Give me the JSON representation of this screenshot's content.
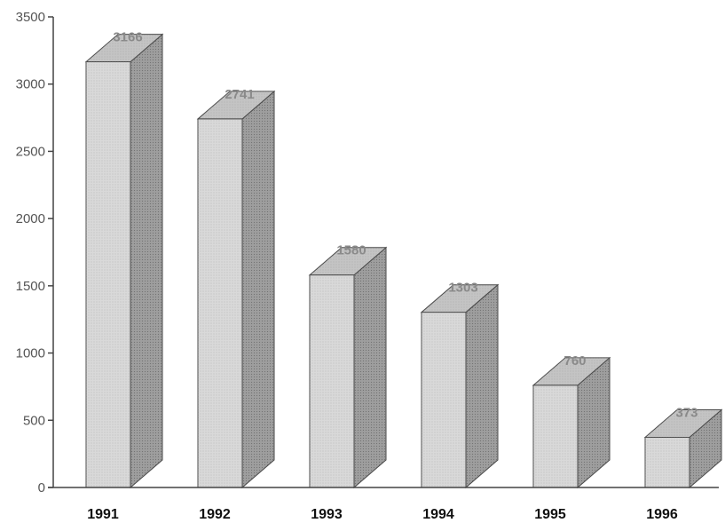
{
  "chart_data": {
    "type": "bar",
    "style": "3d-column",
    "categories": [
      "1991",
      "1992",
      "1993",
      "1994",
      "1995",
      "1996"
    ],
    "values": [
      3166,
      2741,
      1580,
      1303,
      760,
      373
    ],
    "data_labels": [
      "3166",
      "2741",
      "1580",
      "1303",
      "760",
      "373"
    ],
    "title": "",
    "xlabel": "",
    "ylabel": "",
    "ylim": [
      0,
      3500
    ],
    "yticks": [
      0,
      500,
      1000,
      1500,
      2000,
      2500,
      3000,
      3500
    ],
    "ytick_labels": [
      "0",
      "500",
      "1000",
      "1500",
      "2000",
      "2500",
      "3000",
      "3500"
    ],
    "grid": false,
    "legend": "none",
    "colors": {
      "bar_front": "#d9d9d9",
      "bar_top": "#c4c4c4",
      "bar_side": "#9e9e9e",
      "bar_outline": "#4a4a4a",
      "axis": "#444444"
    }
  }
}
